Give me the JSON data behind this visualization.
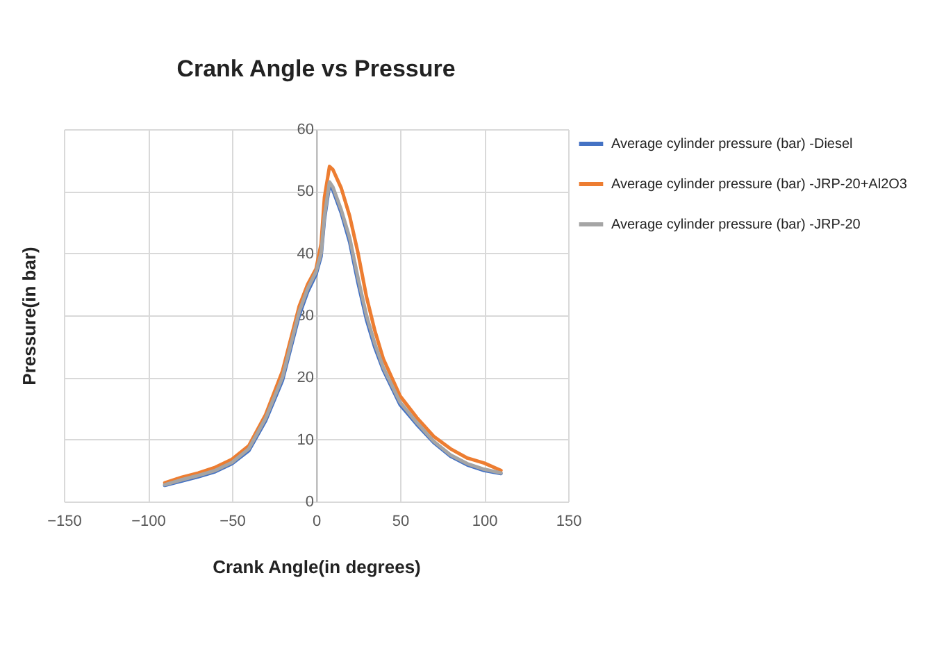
{
  "chart_data": {
    "type": "line",
    "title": "Crank Angle vs Pressure",
    "xlabel": "Crank Angle(in degrees)",
    "ylabel": "Pressure(in bar)",
    "x": [
      -90,
      -80,
      -70,
      -60,
      -50,
      -40,
      -30,
      -20,
      -10,
      -5,
      0,
      3,
      5,
      8,
      10,
      15,
      20,
      25,
      30,
      35,
      40,
      50,
      60,
      70,
      80,
      90,
      100,
      110
    ],
    "series": [
      {
        "name": "Average cylinder pressure (bar) -Diesel",
        "color": "#4472c4",
        "values": [
          2.6,
          3.3,
          4.0,
          4.8,
          6.1,
          8.2,
          13,
          19.5,
          30,
          33.8,
          36.6,
          39.5,
          45.5,
          51,
          50.2,
          46.5,
          41.8,
          35.2,
          29.3,
          24.8,
          21.2,
          15.6,
          12.4,
          9.5,
          7.3,
          5.9,
          5.0,
          4.5
        ]
      },
      {
        "name": "Average cylinder pressure (bar) -JRP-20+Al2O3",
        "color": "#ed7d31",
        "values": [
          3.0,
          3.9,
          4.6,
          5.5,
          6.8,
          9.0,
          14,
          21,
          31.5,
          35,
          37.5,
          41.5,
          49,
          54,
          53.5,
          50.5,
          46,
          40,
          33,
          27.5,
          23,
          17,
          13.5,
          10.5,
          8.5,
          7,
          6.2,
          5
        ]
      },
      {
        "name": "Average cylinder pressure (bar) -JRP-20",
        "color": "#a5a5a5",
        "values": [
          2.7,
          3.5,
          4.2,
          5.0,
          6.3,
          8.5,
          13.4,
          20,
          30.6,
          34.3,
          37,
          40,
          46,
          51.5,
          50.7,
          47,
          42.5,
          36,
          30,
          25.4,
          21.6,
          16,
          12.7,
          9.7,
          7.5,
          6.1,
          5.2,
          4.6
        ]
      }
    ],
    "xlim": [
      -150,
      150
    ],
    "xticks": [
      -150,
      -100,
      -50,
      0,
      50,
      100,
      150
    ],
    "ylim": [
      0,
      60
    ],
    "yticks": [
      0,
      10,
      20,
      30,
      40,
      50,
      60
    ],
    "grid": true,
    "legend": "right",
    "marker": "none",
    "line_style": "solid"
  }
}
